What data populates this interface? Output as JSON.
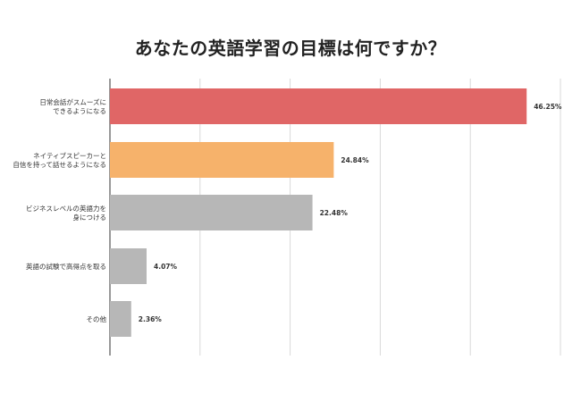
{
  "chart_data": {
    "type": "bar",
    "orientation": "horizontal",
    "title": "あなたの英語学習の目標は何ですか？",
    "categories": [
      [
        "日常会話がスムーズに",
        "できるようになる"
      ],
      [
        "ネイティブスピーカーと",
        "自信を持って話せるようになる"
      ],
      [
        "ビジネスレベルの英語力を",
        "身につける"
      ],
      [
        "英語の試験で高得点を取る"
      ],
      [
        "その他"
      ]
    ],
    "values": [
      46.25,
      24.84,
      22.48,
      4.07,
      2.36
    ],
    "value_labels": [
      "46.25%",
      "24.84%",
      "22.48%",
      "4.07%",
      "2.36%"
    ],
    "bar_colors": [
      "#e06666",
      "#f6b26b",
      "#b7b7b7",
      "#b7b7b7",
      "#b7b7b7"
    ],
    "xlim": [
      0,
      50
    ],
    "grid": true,
    "xlabel": "",
    "ylabel": ""
  }
}
